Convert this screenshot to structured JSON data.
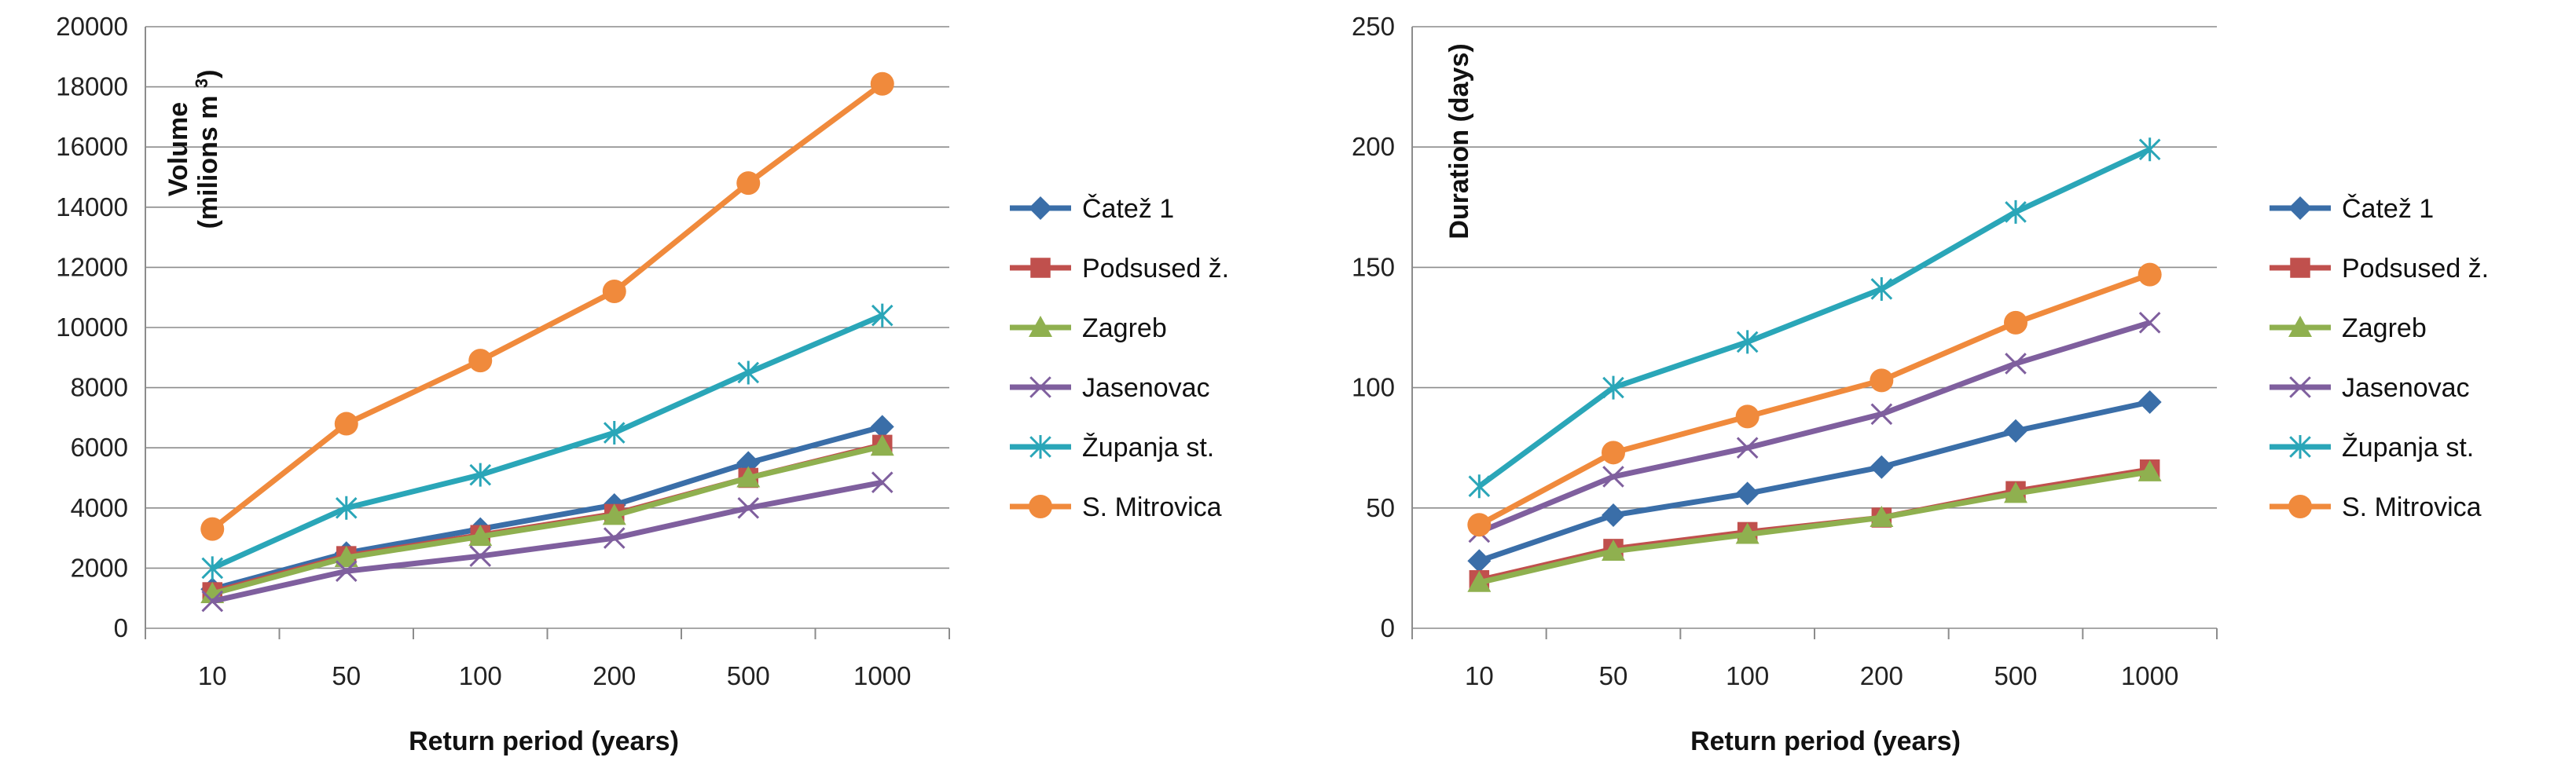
{
  "chart_data": [
    {
      "type": "line",
      "categories": [
        "10",
        "50",
        "100",
        "200",
        "500",
        "1000"
      ],
      "xlabel": "Return period (years)",
      "ylabel": "Volume",
      "ylabel_unit": "(milions m",
      "ylabel_unit_sup": "3",
      "ylabel_unit_close": ")",
      "ylim": [
        0,
        20000
      ],
      "yticks": [
        0,
        2000,
        4000,
        6000,
        8000,
        10000,
        12000,
        14000,
        16000,
        18000,
        20000
      ],
      "grid": true,
      "legend": "right",
      "series": [
        {
          "name": "Čatež 1",
          "values": [
            1300,
            2500,
            3300,
            4100,
            5500,
            6700
          ]
        },
        {
          "name": "Podsused ž.",
          "values": [
            1200,
            2400,
            3100,
            3800,
            5000,
            6100
          ]
        },
        {
          "name": "Zagreb",
          "values": [
            1150,
            2350,
            3050,
            3750,
            5000,
            6050
          ]
        },
        {
          "name": "Jasenovac",
          "values": [
            900,
            1900,
            2400,
            3000,
            4000,
            4850
          ]
        },
        {
          "name": "Županja st.",
          "values": [
            2000,
            4000,
            5100,
            6500,
            8500,
            10400
          ]
        },
        {
          "name": "S. Mitrovica",
          "values": [
            3300,
            6800,
            8900,
            11200,
            14800,
            18100
          ]
        }
      ]
    },
    {
      "type": "line",
      "categories": [
        "10",
        "50",
        "100",
        "200",
        "500",
        "1000"
      ],
      "xlabel": "Return period (years)",
      "ylabel": "Duration",
      "ylabel_unit": "(days)",
      "ylim": [
        0,
        250
      ],
      "yticks": [
        0,
        50,
        100,
        150,
        200,
        250
      ],
      "grid": true,
      "legend": "right",
      "series": [
        {
          "name": "Čatež 1",
          "values": [
            28,
            47,
            56,
            67,
            82,
            94
          ]
        },
        {
          "name": "Podsused ž.",
          "values": [
            20,
            33,
            40,
            46,
            57,
            66
          ]
        },
        {
          "name": "Zagreb",
          "values": [
            19,
            32,
            39,
            46,
            56,
            65
          ]
        },
        {
          "name": "Jasenovac",
          "values": [
            40,
            63,
            75,
            89,
            110,
            127
          ]
        },
        {
          "name": "Županja st.",
          "values": [
            59,
            100,
            119,
            141,
            173,
            199
          ]
        },
        {
          "name": "S. Mitrovica",
          "values": [
            43,
            73,
            88,
            103,
            127,
            147
          ]
        }
      ]
    }
  ],
  "style": {
    "colors": [
      "#3a6ea8",
      "#c0504d",
      "#8fb04f",
      "#7f5f9e",
      "#2aa6b8",
      "#f08a3c"
    ],
    "markers": [
      "diamond-icon",
      "square-icon",
      "triangle-icon",
      "x-icon",
      "asterisk-icon",
      "circle-icon"
    ],
    "grid_color": "#8c8c8c",
    "axis_color": "#8c8c8c"
  }
}
